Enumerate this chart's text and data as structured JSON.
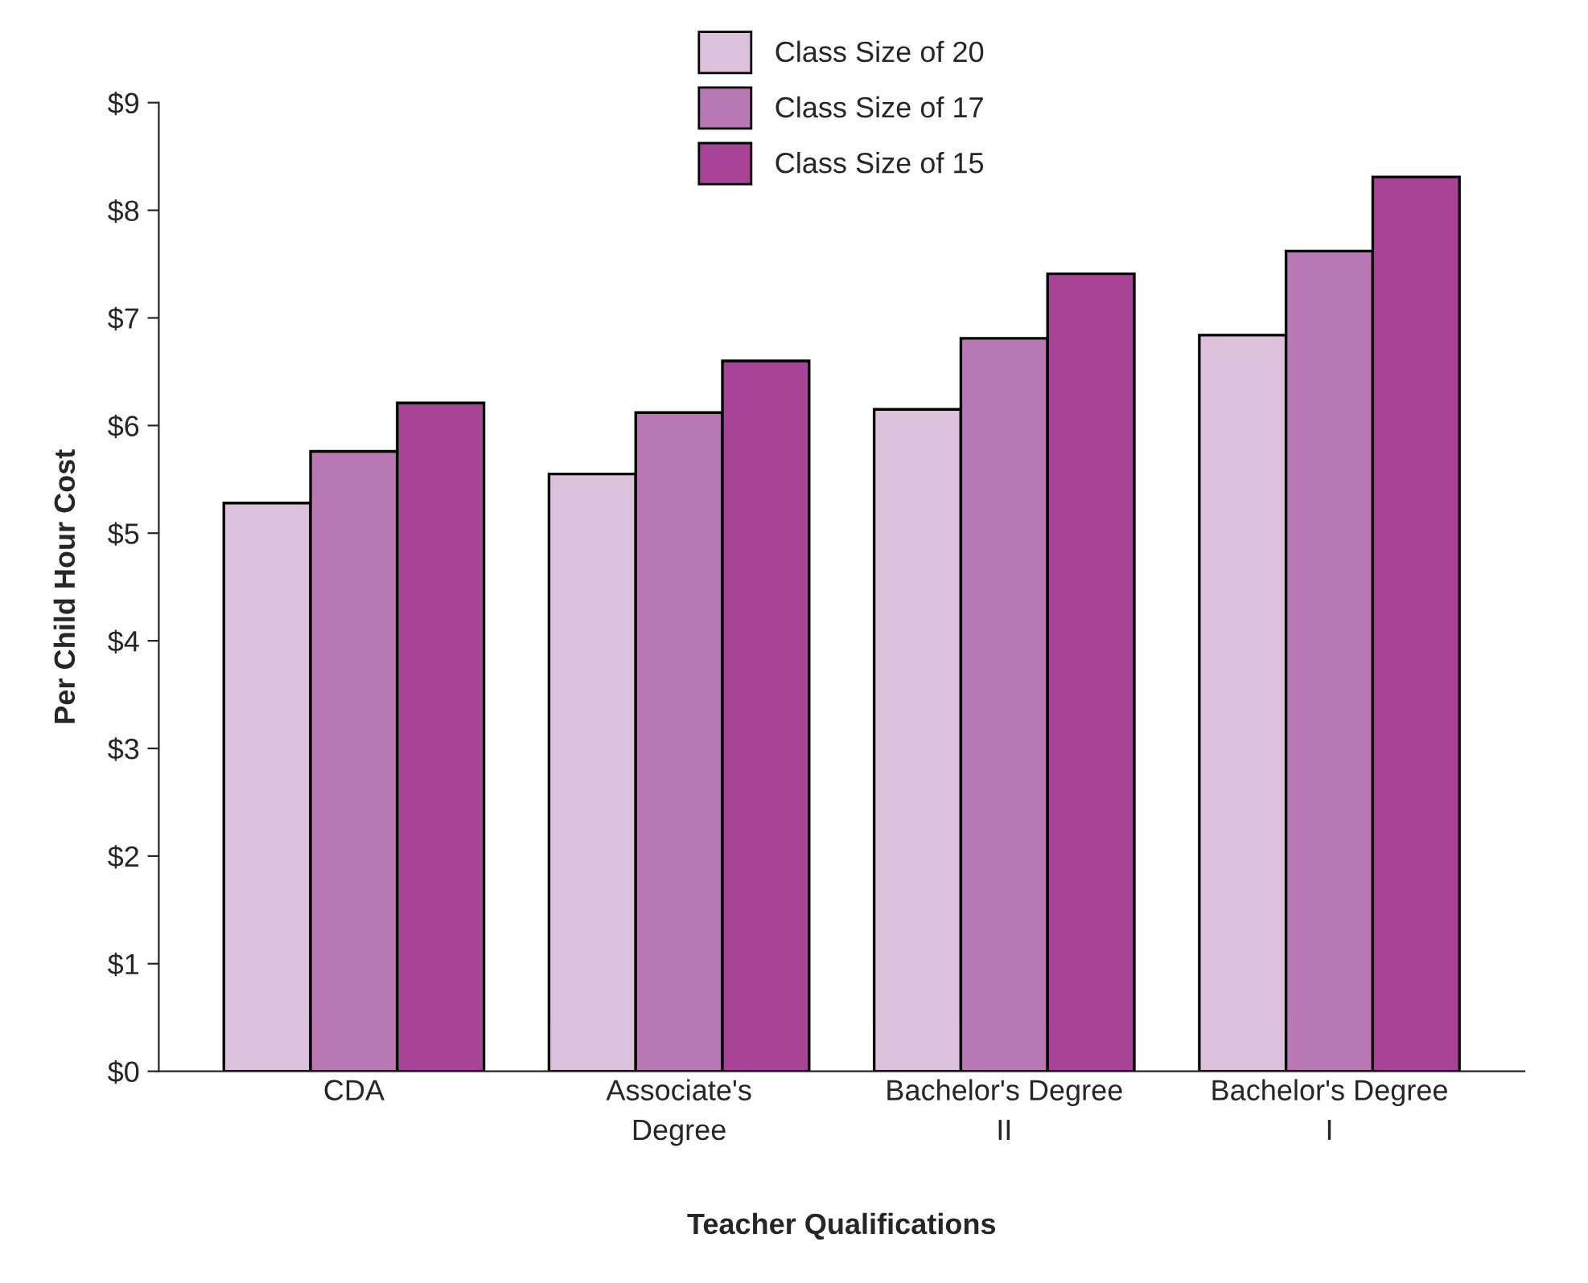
{
  "chart_data": {
    "type": "bar",
    "xlabel": "Teacher Qualifications",
    "ylabel": "Per Child Hour Cost",
    "categories": [
      "CDA",
      "Associate's\nDegree",
      "Bachelor's Degree\nII",
      "Bachelor's Degree\nI"
    ],
    "series": [
      {
        "name": "Class Size of 20",
        "color": "#dcc0dc",
        "values": [
          5.28,
          5.55,
          6.15,
          6.84
        ]
      },
      {
        "name": "Class Size of 17",
        "color": "#b878b4",
        "values": [
          5.76,
          6.12,
          6.81,
          7.62
        ]
      },
      {
        "name": "Class Size of 15",
        "color": "#a84498",
        "values": [
          6.21,
          6.6,
          7.41,
          8.31
        ]
      }
    ],
    "ylim": [
      0,
      9
    ],
    "yticks": [
      {
        "value": 0,
        "label": "$0"
      },
      {
        "value": 1,
        "label": "$1"
      },
      {
        "value": 2,
        "label": "$2"
      },
      {
        "value": 3,
        "label": "$3"
      },
      {
        "value": 4,
        "label": "$4"
      },
      {
        "value": 5,
        "label": "$5"
      },
      {
        "value": 6,
        "label": "$6"
      },
      {
        "value": 7,
        "label": "$7"
      },
      {
        "value": 8,
        "label": "$8"
      },
      {
        "value": 9,
        "label": "$9"
      }
    ],
    "legend": "top",
    "grid": false
  }
}
